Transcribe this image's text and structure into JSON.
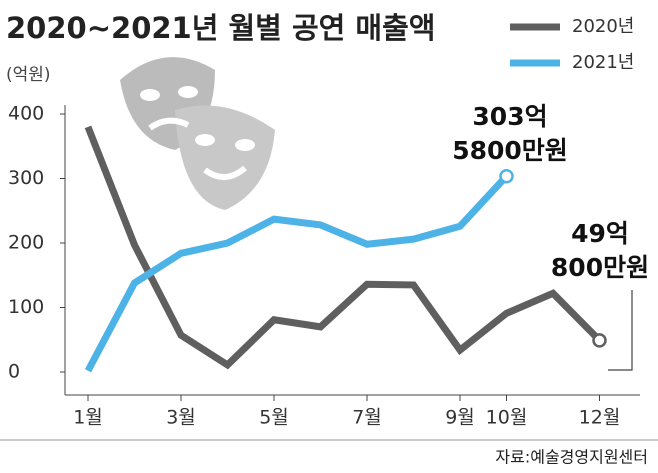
{
  "chart_data": {
    "type": "line",
    "title": "2020~2021년 월별 공연 매출액",
    "y_label": "(억원)",
    "source": "자료:예술경영지원센터",
    "categories": [
      "1월",
      null,
      "3월",
      null,
      "5월",
      null,
      "7월",
      null,
      "9월",
      "10월",
      null,
      "12월"
    ],
    "series": [
      {
        "name": "2020년",
        "color": "#5f5f5f",
        "values": [
          380,
          197,
          57,
          11,
          81,
          70,
          136,
          135,
          34,
          91,
          122,
          49.08
        ],
        "value_labels": [
          null,
          null,
          null,
          null,
          null,
          null,
          null,
          null,
          null,
          null,
          null,
          "49억\n800만원"
        ]
      },
      {
        "name": "2021년",
        "color": "#4db3e6",
        "values": [
          2,
          138,
          184,
          200,
          237,
          228,
          198,
          206,
          226,
          303.58,
          null,
          null
        ],
        "value_labels": [
          null,
          null,
          null,
          null,
          null,
          null,
          null,
          null,
          null,
          "303억\n5800만원",
          null,
          null
        ]
      }
    ],
    "ylim": [
      0,
      400
    ],
    "yticks": [
      0,
      100,
      200,
      300,
      400
    ]
  }
}
